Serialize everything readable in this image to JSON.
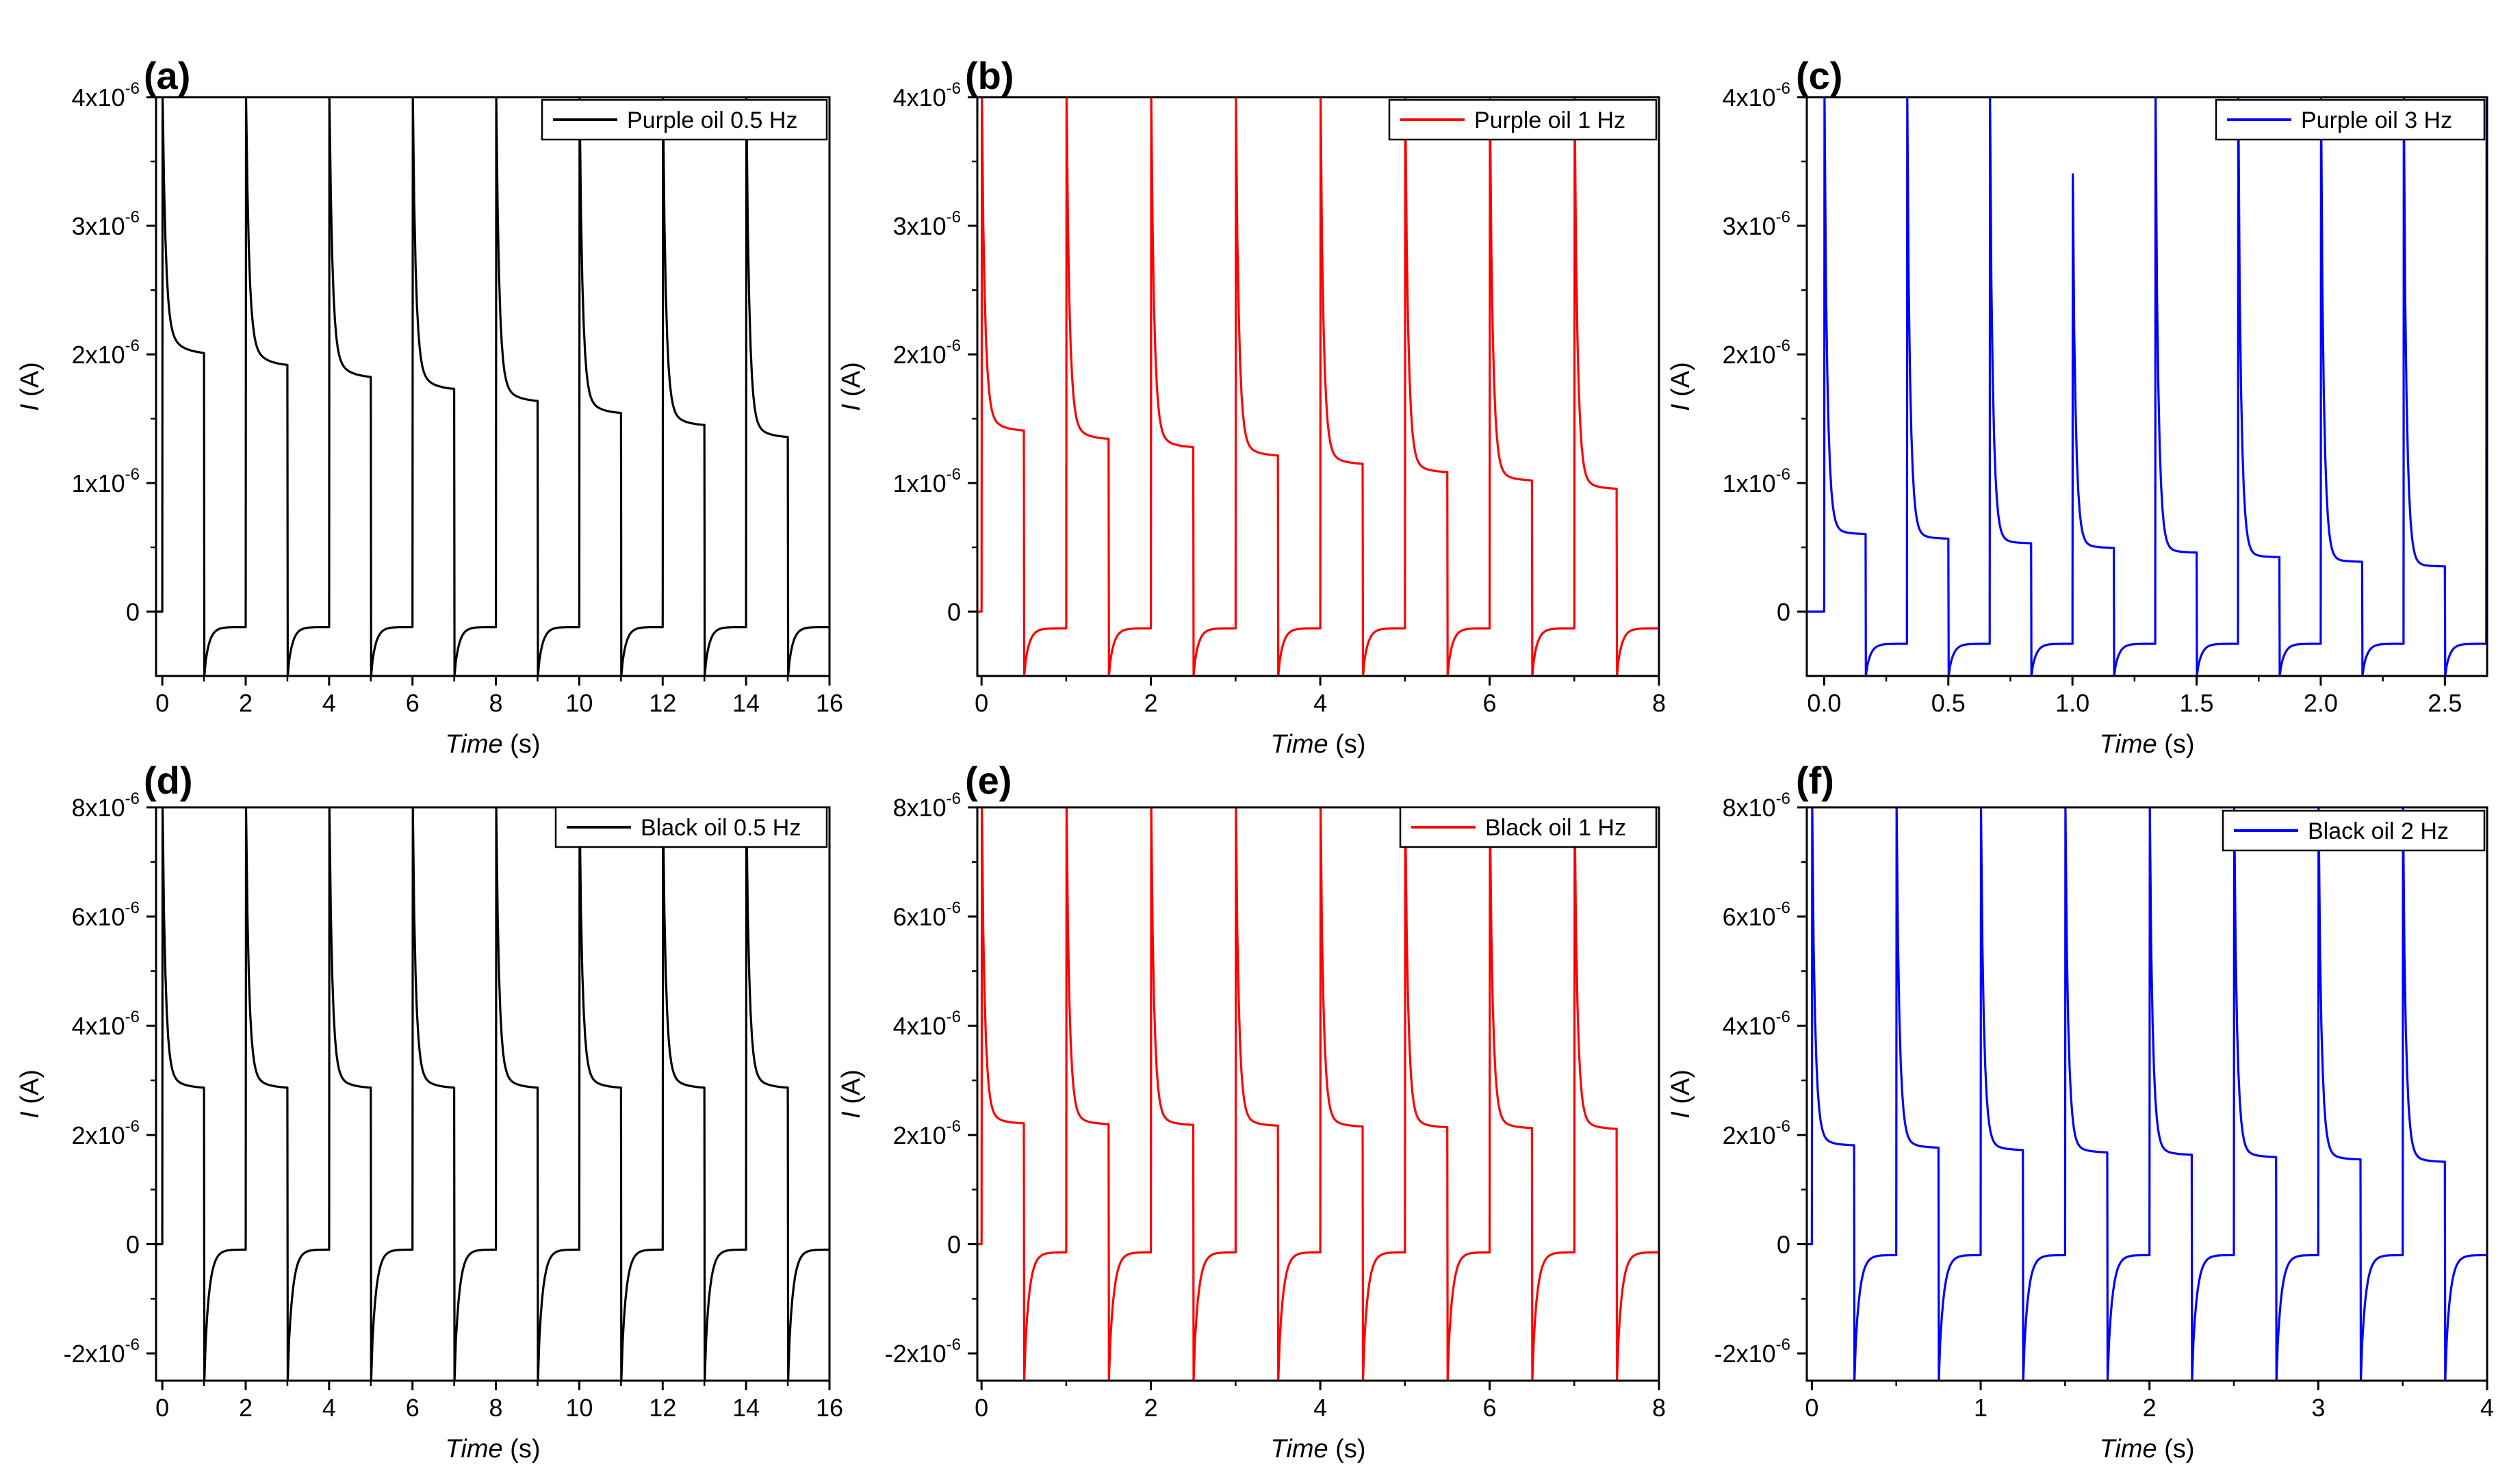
{
  "chart_data": [
    {
      "type": "line",
      "panel": "(a)",
      "series": [
        {
          "name": "Purple oil 0.5 Hz",
          "color": "#000000",
          "frequency_hz": 0.5,
          "baseline": 0,
          "first_peak": 4e-06,
          "plateau_start": 2e-06,
          "plateau_end": 1.35e-06,
          "trough": -5e-07,
          "recovery": -1.2e-07
        }
      ],
      "xlabel": "Time",
      "xunit": " (s)",
      "ylabel": "I",
      "yunit": " (A)",
      "xlim": [
        -0.15,
        16
      ],
      "ylim": [
        -5e-07,
        4e-06
      ],
      "xticks": [
        {
          "v": 0,
          "label": "0"
        },
        {
          "v": 2,
          "label": "2"
        },
        {
          "v": 4,
          "label": "4"
        },
        {
          "v": 6,
          "label": "6"
        },
        {
          "v": 8,
          "label": "8"
        },
        {
          "v": 10,
          "label": "10"
        },
        {
          "v": 12,
          "label": "12"
        },
        {
          "v": 14,
          "label": "14"
        },
        {
          "v": 16,
          "label": "16"
        }
      ],
      "yticks": [
        {
          "v": 0,
          "m": "0",
          "e": ""
        },
        {
          "v": 1e-06,
          "m": "1x10",
          "e": "-6"
        },
        {
          "v": 2e-06,
          "m": "2x10",
          "e": "-6"
        },
        {
          "v": 3e-06,
          "m": "3x10",
          "e": "-6"
        },
        {
          "v": 4e-06,
          "m": "4x10",
          "e": "-6"
        }
      ]
    },
    {
      "type": "line",
      "panel": "(b)",
      "series": [
        {
          "name": "Purple oil 1 Hz",
          "color": "#ff0000",
          "frequency_hz": 1,
          "baseline": 0,
          "first_peak": 4e-06,
          "plateau_start": 1.4e-06,
          "plateau_end": 9.5e-07,
          "trough": -5e-07,
          "recovery": -1.3e-07
        }
      ],
      "xlabel": "Time",
      "xunit": " (s)",
      "ylabel": "I",
      "yunit": " (A)",
      "xlim": [
        -0.05,
        8
      ],
      "ylim": [
        -5e-07,
        4e-06
      ],
      "xticks": [
        {
          "v": 0,
          "label": "0"
        },
        {
          "v": 2,
          "label": "2"
        },
        {
          "v": 4,
          "label": "4"
        },
        {
          "v": 6,
          "label": "6"
        },
        {
          "v": 8,
          "label": "8"
        }
      ],
      "yticks": [
        {
          "v": 0,
          "m": "0",
          "e": ""
        },
        {
          "v": 1e-06,
          "m": "1x10",
          "e": "-6"
        },
        {
          "v": 2e-06,
          "m": "2x10",
          "e": "-6"
        },
        {
          "v": 3e-06,
          "m": "3x10",
          "e": "-6"
        },
        {
          "v": 4e-06,
          "m": "4x10",
          "e": "-6"
        }
      ]
    },
    {
      "type": "line",
      "panel": "(c)",
      "series": [
        {
          "name": "Purple oil 3 Hz",
          "color": "#0000ff",
          "frequency_hz": 3,
          "baseline": 0,
          "first_peak": 4e-06,
          "plateau_start": 6e-07,
          "plateau_end": 3.5e-07,
          "trough": -5e-07,
          "recovery": -2.5e-07,
          "notable_peak": {
            "x": 1.0,
            "y": 3.4e-06
          }
        }
      ],
      "xlabel": "Time",
      "xunit": " (s)",
      "ylabel": "I",
      "yunit": " (A)",
      "xlim": [
        -0.07,
        2.67
      ],
      "ylim": [
        -5e-07,
        4e-06
      ],
      "xticks": [
        {
          "v": 0,
          "label": "0.0"
        },
        {
          "v": 0.5,
          "label": "0.5"
        },
        {
          "v": 1,
          "label": "1.0"
        },
        {
          "v": 1.5,
          "label": "1.5"
        },
        {
          "v": 2,
          "label": "2.0"
        },
        {
          "v": 2.5,
          "label": "2.5"
        }
      ],
      "yticks": [
        {
          "v": 0,
          "m": "0",
          "e": ""
        },
        {
          "v": 1e-06,
          "m": "1x10",
          "e": "-6"
        },
        {
          "v": 2e-06,
          "m": "2x10",
          "e": "-6"
        },
        {
          "v": 3e-06,
          "m": "3x10",
          "e": "-6"
        },
        {
          "v": 4e-06,
          "m": "4x10",
          "e": "-6"
        }
      ]
    },
    {
      "type": "line",
      "panel": "(d)",
      "series": [
        {
          "name": "Black oil 0.5 Hz",
          "color": "#000000",
          "frequency_hz": 0.5,
          "baseline": 0,
          "first_peak": 8e-06,
          "plateau_start": 2.85e-06,
          "plateau_end": 2.85e-06,
          "trough": -2.5e-06,
          "recovery": -1e-07
        }
      ],
      "xlabel": "Time",
      "xunit": " (s)",
      "ylabel": "I",
      "yunit": " (A)",
      "xlim": [
        -0.15,
        16
      ],
      "ylim": [
        -2.5e-06,
        8e-06
      ],
      "xticks": [
        {
          "v": 0,
          "label": "0"
        },
        {
          "v": 2,
          "label": "2"
        },
        {
          "v": 4,
          "label": "4"
        },
        {
          "v": 6,
          "label": "6"
        },
        {
          "v": 8,
          "label": "8"
        },
        {
          "v": 10,
          "label": "10"
        },
        {
          "v": 12,
          "label": "12"
        },
        {
          "v": 14,
          "label": "14"
        },
        {
          "v": 16,
          "label": "16"
        }
      ],
      "yticks": [
        {
          "v": -2e-06,
          "m": "-2x10",
          "e": "-6"
        },
        {
          "v": 0,
          "m": "0",
          "e": ""
        },
        {
          "v": 2e-06,
          "m": "2x10",
          "e": "-6"
        },
        {
          "v": 4e-06,
          "m": "4x10",
          "e": "-6"
        },
        {
          "v": 6e-06,
          "m": "6x10",
          "e": "-6"
        },
        {
          "v": 8e-06,
          "m": "8x10",
          "e": "-6"
        }
      ]
    },
    {
      "type": "line",
      "panel": "(e)",
      "series": [
        {
          "name": "Black oil 1 Hz",
          "color": "#ff0000",
          "frequency_hz": 1,
          "baseline": 0,
          "first_peak": 8e-06,
          "plateau_start": 2.2e-06,
          "plateau_end": 2.1e-06,
          "trough": -2.5e-06,
          "recovery": -1.5e-07
        }
      ],
      "xlabel": "Time",
      "xunit": " (s)",
      "ylabel": "I",
      "yunit": " (A)",
      "xlim": [
        -0.05,
        8
      ],
      "ylim": [
        -2.5e-06,
        8e-06
      ],
      "xticks": [
        {
          "v": 0,
          "label": "0"
        },
        {
          "v": 2,
          "label": "2"
        },
        {
          "v": 4,
          "label": "4"
        },
        {
          "v": 6,
          "label": "6"
        },
        {
          "v": 8,
          "label": "8"
        }
      ],
      "yticks": [
        {
          "v": -2e-06,
          "m": "-2x10",
          "e": "-6"
        },
        {
          "v": 0,
          "m": "0",
          "e": ""
        },
        {
          "v": 2e-06,
          "m": "2x10",
          "e": "-6"
        },
        {
          "v": 4e-06,
          "m": "4x10",
          "e": "-6"
        },
        {
          "v": 6e-06,
          "m": "6x10",
          "e": "-6"
        },
        {
          "v": 8e-06,
          "m": "8x10",
          "e": "-6"
        }
      ]
    },
    {
      "type": "line",
      "panel": "(f)",
      "series": [
        {
          "name": "Black oil 2 Hz",
          "color": "#0000ff",
          "frequency_hz": 2,
          "baseline": 0,
          "first_peak": 8e-06,
          "plateau_start": 1.8e-06,
          "plateau_end": 1.5e-06,
          "trough": -2.5e-06,
          "recovery": -2e-07
        }
      ],
      "xlabel": "Time",
      "xunit": " (s)",
      "ylabel": "I",
      "yunit": " (A)",
      "xlim": [
        -0.03,
        4
      ],
      "ylim": [
        -2.5e-06,
        8e-06
      ],
      "xticks": [
        {
          "v": 0,
          "label": "0"
        },
        {
          "v": 1,
          "label": "1"
        },
        {
          "v": 2,
          "label": "2"
        },
        {
          "v": 3,
          "label": "3"
        },
        {
          "v": 4,
          "label": "4"
        }
      ],
      "yticks": [
        {
          "v": -2e-06,
          "m": "-2x10",
          "e": "-6"
        },
        {
          "v": 0,
          "m": "0",
          "e": ""
        },
        {
          "v": 2e-06,
          "m": "2x10",
          "e": "-6"
        },
        {
          "v": 4e-06,
          "m": "4x10",
          "e": "-6"
        },
        {
          "v": 6e-06,
          "m": "6x10",
          "e": "-6"
        },
        {
          "v": 8e-06,
          "m": "8x10",
          "e": "-6"
        }
      ]
    }
  ]
}
